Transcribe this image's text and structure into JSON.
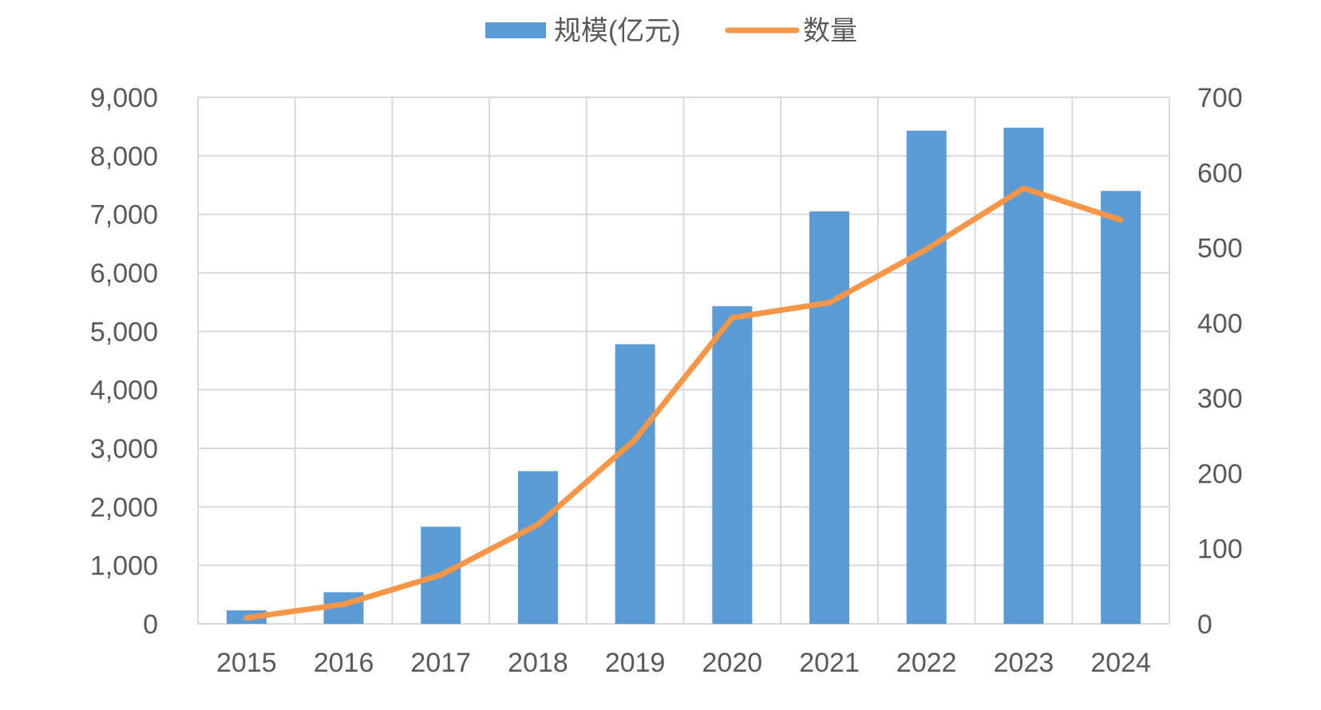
{
  "chart_data": {
    "type": "bar",
    "categories": [
      "2015",
      "2016",
      "2017",
      "2018",
      "2019",
      "2020",
      "2021",
      "2022",
      "2023",
      "2024"
    ],
    "series": [
      {
        "name": "规模(亿元)",
        "type": "bar",
        "axis": "left",
        "color": "#5b9bd5",
        "values": [
          230,
          540,
          1660,
          2610,
          4780,
          5430,
          7050,
          8430,
          8480,
          7400
        ]
      },
      {
        "name": "数量",
        "type": "line",
        "axis": "right",
        "color": "#f79646",
        "values": [
          8,
          26,
          65,
          132,
          245,
          407,
          427,
          498,
          579,
          537
        ]
      }
    ],
    "left_axis": {
      "ylim": [
        0,
        9000
      ],
      "ticks": [
        "0",
        "1,000",
        "2,000",
        "3,000",
        "4,000",
        "5,000",
        "6,000",
        "7,000",
        "8,000",
        "9,000"
      ]
    },
    "right_axis": {
      "ylim": [
        0,
        700
      ],
      "ticks": [
        "0",
        "100",
        "200",
        "300",
        "400",
        "500",
        "600",
        "700"
      ]
    },
    "legend": {
      "position": "top",
      "items": [
        "规模(亿元)",
        "数量"
      ]
    },
    "grid": true
  }
}
